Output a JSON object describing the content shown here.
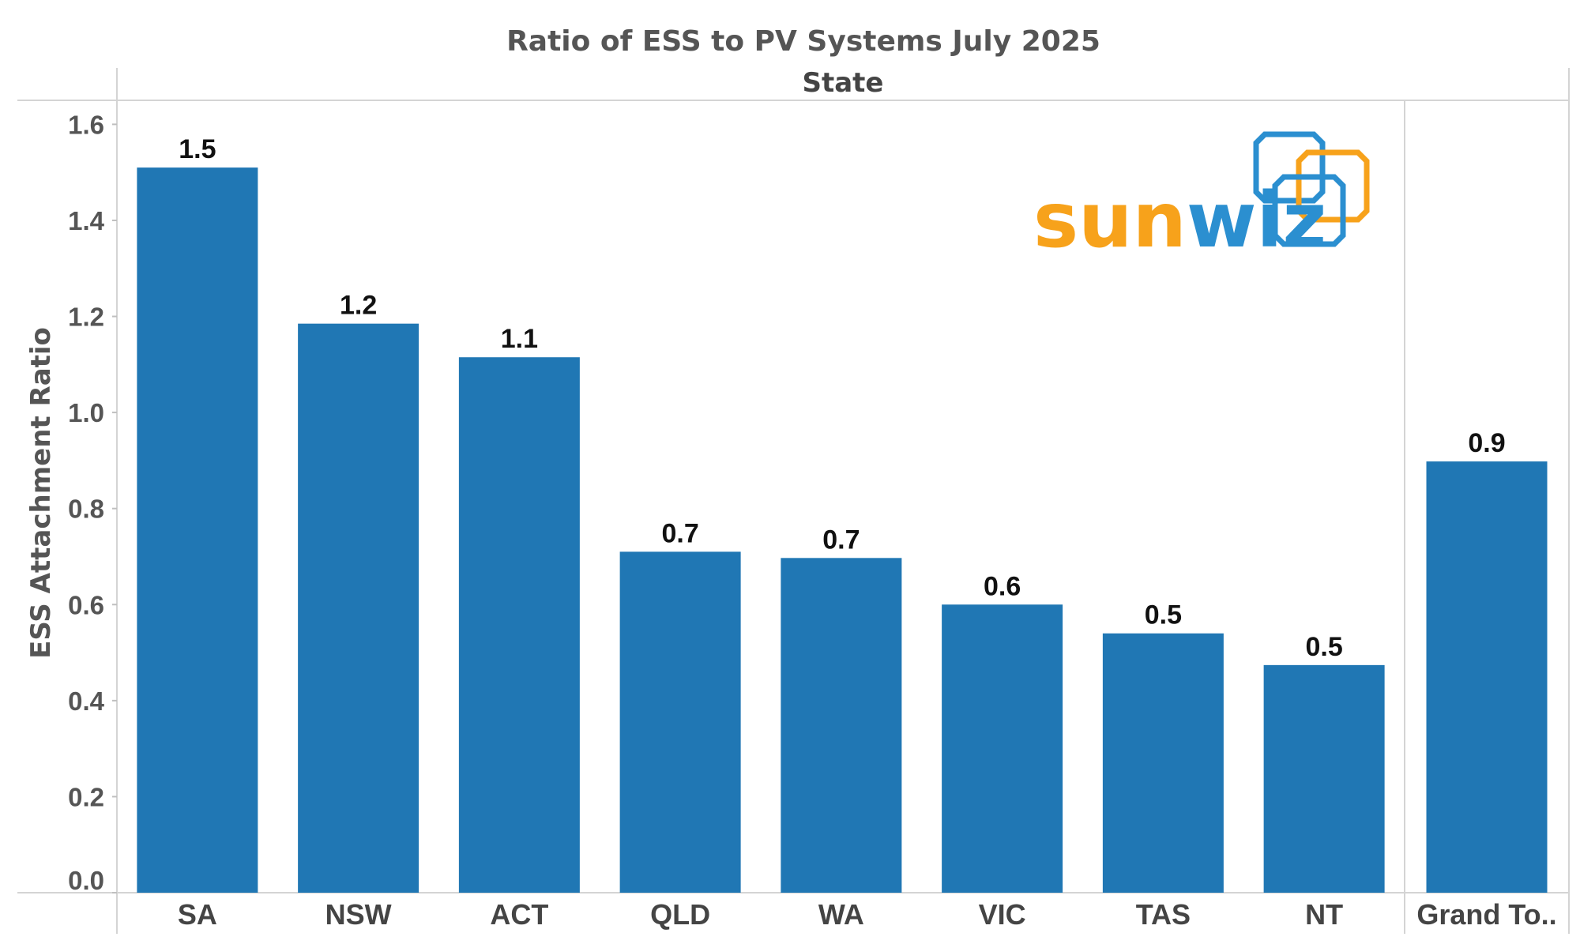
{
  "chart_data": {
    "type": "bar",
    "title": "Ratio of ESS to PV Systems July 2025",
    "column_header": "State",
    "ylabel": "ESS Attachment Ratio",
    "ylim": [
      0,
      1.65
    ],
    "yticks": [
      "0.0",
      "0.2",
      "0.4",
      "0.6",
      "0.8",
      "1.0",
      "1.2",
      "1.4",
      "1.6"
    ],
    "yticks_values": [
      0,
      0.2,
      0.4,
      0.6,
      0.8,
      1.0,
      1.2,
      1.4,
      1.6
    ],
    "categories": [
      "SA",
      "NSW",
      "ACT",
      "QLD",
      "WA",
      "VIC",
      "TAS",
      "NT"
    ],
    "values": [
      1.51,
      1.185,
      1.115,
      0.71,
      0.697,
      0.6,
      0.54,
      0.474
    ],
    "data_labels": [
      "1.5",
      "1.2",
      "1.1",
      "0.7",
      "0.7",
      "0.6",
      "0.5",
      "0.5"
    ],
    "total": {
      "category": "Grand To..",
      "value": 0.898,
      "data_label": "0.9"
    },
    "grid": false,
    "legend": "none",
    "bar_color": "#2077b4"
  },
  "logo": {
    "text_orange": "sun",
    "text_blue": "wiz",
    "orange_color": "#f7a21b",
    "blue_color": "#2b8fd0"
  }
}
